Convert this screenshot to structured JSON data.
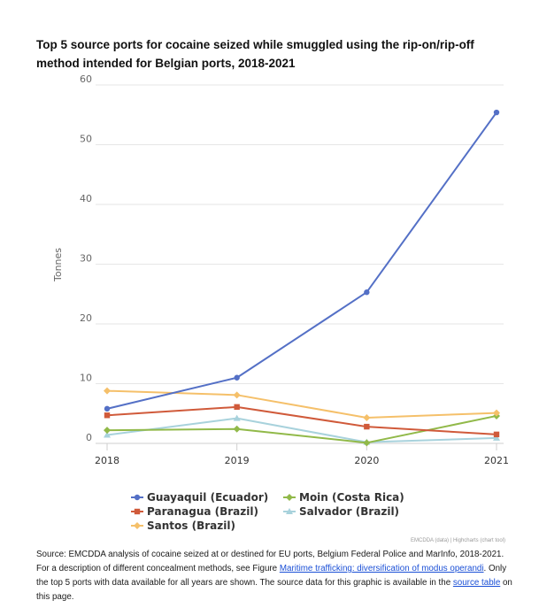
{
  "chart_data": {
    "type": "line",
    "title": "Top 5 source ports for cocaine seized while smuggled using the rip-on/rip-off method intended for Belgian ports, 2018-2021",
    "ylabel": "Tonnes",
    "xlabel": "",
    "x": [
      "2018",
      "2019",
      "2020",
      "2021"
    ],
    "ylim": [
      0,
      60
    ],
    "yticks": [
      "0",
      "10",
      "20",
      "30",
      "40",
      "50",
      "60"
    ],
    "grid": true,
    "legend_position": "bottom",
    "series": [
      {
        "name": "Guayaquil (Ecuador)",
        "values": [
          5.8,
          11.0,
          25.3,
          55.4
        ],
        "color": "#5470c6",
        "marker": "circle"
      },
      {
        "name": "Paranagua (Brazil)",
        "values": [
          4.7,
          6.1,
          2.8,
          1.5
        ],
        "color": "#d05a3a",
        "marker": "square"
      },
      {
        "name": "Santos (Brazil)",
        "values": [
          8.8,
          8.1,
          4.3,
          5.1
        ],
        "color": "#f5c06a",
        "marker": "diamond"
      },
      {
        "name": "Moin (Costa Rica)",
        "values": [
          2.2,
          2.4,
          0.1,
          4.6
        ],
        "color": "#91b949",
        "marker": "diamond"
      },
      {
        "name": "Salvador (Brazil)",
        "values": [
          1.4,
          4.2,
          0.2,
          0.9
        ],
        "color": "#a8d2dc",
        "marker": "triangle"
      }
    ]
  },
  "credits": {
    "emcdda": "EMCDDA (data)",
    "separator": "|",
    "highcharts": "Highcharts (chart tool)"
  },
  "source": {
    "text1": "Source: EMCDDA analysis of cocaine seized at or destined for EU ports, Belgium Federal Police and MarInfo, 2018-2021. For a description of different concealment methods, see Figure ",
    "link1": "Maritime trafficking: diversification of modus operandi",
    "text2": ". Only the top 5 ports with data available for all years are shown. The source data for this graphic is available in the ",
    "link2": "source table",
    "text3": " on this page."
  }
}
